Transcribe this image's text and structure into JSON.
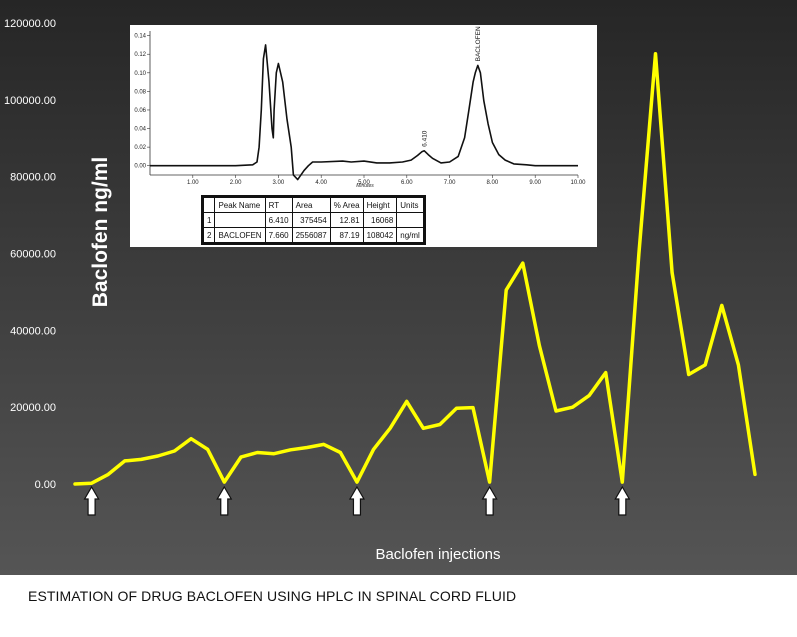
{
  "footer": "ESTIMATION OF DRUG BACLOFEN  USING HPLC IN SPINAL CORD FLUID",
  "chart_data": [
    {
      "type": "line",
      "ylabel": "Baclofen  ng/ml",
      "xlabel": "Baclofen injections",
      "ylim": [
        0,
        120000
      ],
      "yticks": [
        "0.00",
        "20000.00",
        "40000.00",
        "60000.00",
        "80000.00",
        "100000.00",
        "120000.00"
      ],
      "ytick_values": [
        0,
        20000,
        40000,
        60000,
        80000,
        100000,
        120000
      ],
      "grid": false,
      "series": [
        {
          "color": "#ffff00",
          "values": [
            0,
            200,
            2500,
            6000,
            6400,
            7300,
            8600,
            11800,
            9000,
            500,
            7000,
            8200,
            7900,
            8900,
            9500,
            10300,
            8200,
            500,
            9000,
            14500,
            21500,
            14500,
            15500,
            19700,
            19900,
            500,
            50500,
            57500,
            36000,
            19000,
            20000,
            23000,
            29000,
            500,
            60000,
            112000,
            55000,
            28500,
            31000,
            46500,
            31000,
            2500
          ]
        }
      ],
      "injection_arrows_at_index": [
        1,
        9,
        17,
        25,
        33
      ],
      "colors": {
        "background_top": "#262626",
        "background_bottom": "#555555",
        "line": "#ffff00",
        "text": "#ffffff"
      }
    },
    {
      "type": "line",
      "xlabel": "Minutes",
      "xlim": [
        0,
        10
      ],
      "ylim": [
        -0.01,
        0.145
      ],
      "xticks": [
        "1.00",
        "2.00",
        "3.00",
        "4.00",
        "5.00",
        "6.00",
        "7.00",
        "8.00",
        "9.00",
        "10.00"
      ],
      "xtick_values": [
        1,
        2,
        3,
        4,
        5,
        6,
        7,
        8,
        9,
        10
      ],
      "yticks": [
        "0.00",
        "0.02",
        "0.04",
        "0.06",
        "0.08",
        "0.10",
        "0.12",
        "0.14"
      ],
      "ytick_values": [
        0,
        0.02,
        0.04,
        0.06,
        0.08,
        0.1,
        0.12,
        0.14
      ],
      "series": [
        {
          "color": "#111111",
          "x": [
            0,
            1.0,
            2.0,
            2.4,
            2.5,
            2.55,
            2.6,
            2.65,
            2.7,
            2.78,
            2.85,
            2.88,
            2.9,
            2.95,
            3.0,
            3.1,
            3.2,
            3.3,
            3.35,
            3.45,
            3.6,
            3.7,
            3.8,
            4.0,
            4.5,
            4.7,
            5.0,
            5.3,
            5.6,
            5.9,
            6.1,
            6.25,
            6.35,
            6.41,
            6.5,
            6.6,
            6.8,
            7.0,
            7.2,
            7.35,
            7.45,
            7.55,
            7.6,
            7.66,
            7.72,
            7.8,
            7.9,
            8.0,
            8.15,
            8.3,
            8.5,
            8.8,
            9.0,
            10.0
          ],
          "y": [
            0,
            0,
            0,
            0.001,
            0.004,
            0.02,
            0.06,
            0.115,
            0.13,
            0.09,
            0.04,
            0.03,
            0.06,
            0.1,
            0.11,
            0.09,
            0.05,
            0.02,
            -0.01,
            -0.015,
            -0.005,
            0,
            0.004,
            0.004,
            0.005,
            0.004,
            0.005,
            0.003,
            0.003,
            0.004,
            0.006,
            0.011,
            0.015,
            0.016,
            0.012,
            0.008,
            0.003,
            0.004,
            0.01,
            0.03,
            0.06,
            0.09,
            0.1,
            0.108,
            0.1,
            0.07,
            0.045,
            0.025,
            0.012,
            0.006,
            0.002,
            0.001,
            0,
            0
          ]
        }
      ],
      "peak_labels": [
        {
          "text": "6.410",
          "x": 6.41,
          "y": 0.016
        },
        {
          "text": "BACLOFEN",
          "x": 7.66,
          "y": 0.108
        }
      ]
    }
  ],
  "peak_table": {
    "headers": [
      "",
      "Peak Name",
      "RT",
      "Area",
      "% Area",
      "Height",
      "Units"
    ],
    "rows": [
      [
        "1",
        "",
        "6.410",
        "375454",
        "12.81",
        "16068",
        ""
      ],
      [
        "2",
        "BACLOFEN",
        "7.660",
        "2556087",
        "87.19",
        "108042",
        "ng/ml"
      ]
    ]
  }
}
